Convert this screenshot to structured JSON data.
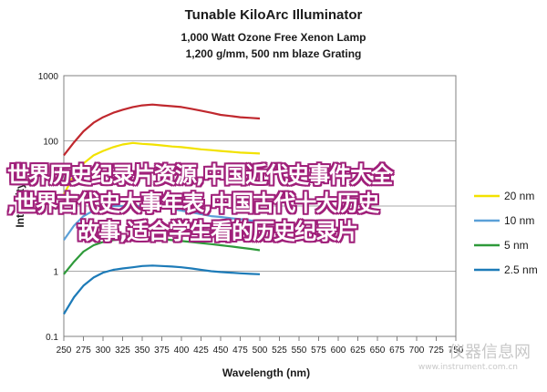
{
  "chart_data": {
    "type": "line",
    "title": "Tunable KiloArc Illuminator",
    "subtitle_1": "1,000 Watt Ozone Free Xenon Lamp",
    "subtitle_2": "1,200 g/mm, 500 nm blaze Grating",
    "xlabel": "Wavelength (nm)",
    "ylabel": "Intensity",
    "xlim": [
      250,
      500
    ],
    "ylim": [
      0.1,
      1000
    ],
    "y_scale": "log",
    "grid": true,
    "legend_placement": "right",
    "x_ticks": [
      "250",
      "275",
      "300",
      "325",
      "350",
      "375",
      "400",
      "425",
      "450",
      "475",
      "500",
      "525",
      "550",
      "575",
      "600",
      "625",
      "650",
      "675",
      "700",
      "725",
      "750"
    ],
    "y_ticks": [
      "0.1",
      "1",
      "10",
      "100",
      "1000"
    ],
    "x": [
      250,
      263,
      275,
      288,
      300,
      313,
      325,
      338,
      350,
      363,
      375,
      388,
      400,
      413,
      425,
      438,
      450,
      463,
      475,
      488,
      500
    ],
    "series": [
      {
        "name": "",
        "color": "#c0282e",
        "values": [
          60,
          95,
          140,
          190,
          230,
          270,
          300,
          330,
          350,
          360,
          350,
          340,
          330,
          310,
          290,
          270,
          250,
          240,
          230,
          225,
          220
        ]
      },
      {
        "name": "",
        "color": "#f2e200",
        "values": [
          15,
          30,
          45,
          60,
          70,
          80,
          88,
          93,
          90,
          88,
          85,
          82,
          80,
          77,
          74,
          72,
          70,
          68,
          66,
          65,
          64
        ]
      },
      {
        "name": "",
        "color": "#5aa0d8",
        "values": [
          3,
          5,
          7,
          8.5,
          9.5,
          10,
          10,
          10,
          10,
          10,
          9.5,
          9,
          8.5,
          8,
          7.5,
          7,
          6.8,
          6.5,
          6.3,
          6,
          5.8
        ]
      },
      {
        "name": "",
        "color": "#2e9a3a",
        "values": [
          0.9,
          1.4,
          2,
          2.5,
          2.8,
          3,
          3.1,
          3.2,
          3.2,
          3.2,
          3.1,
          3,
          2.9,
          2.8,
          2.7,
          2.6,
          2.5,
          2.4,
          2.3,
          2.2,
          2.1
        ]
      },
      {
        "name": "",
        "color": "#1d7bb8",
        "values": [
          0.22,
          0.4,
          0.6,
          0.8,
          0.95,
          1.05,
          1.1,
          1.15,
          1.2,
          1.22,
          1.2,
          1.18,
          1.15,
          1.1,
          1.05,
          1.0,
          0.97,
          0.95,
          0.93,
          0.91,
          0.9
        ]
      }
    ],
    "legend": [
      {
        "label": "20 nm",
        "color": "#f2e200"
      },
      {
        "label": "10 nm",
        "color": "#5aa0d8"
      },
      {
        "label": "5 nm",
        "color": "#2e9a3a"
      },
      {
        "label": "2.5 nm",
        "color": "#1d7bb8"
      }
    ]
  },
  "overlay": {
    "line1": "世界历史纪录片资源,中国近代史事件大全",
    "line2": ",世界古代史大事年表,中国古代十大历史",
    "line3": "故事,适合学生看的历史纪录片"
  },
  "watermark": {
    "text": "仪器信息网",
    "url": "www.instrument.com.cn"
  }
}
